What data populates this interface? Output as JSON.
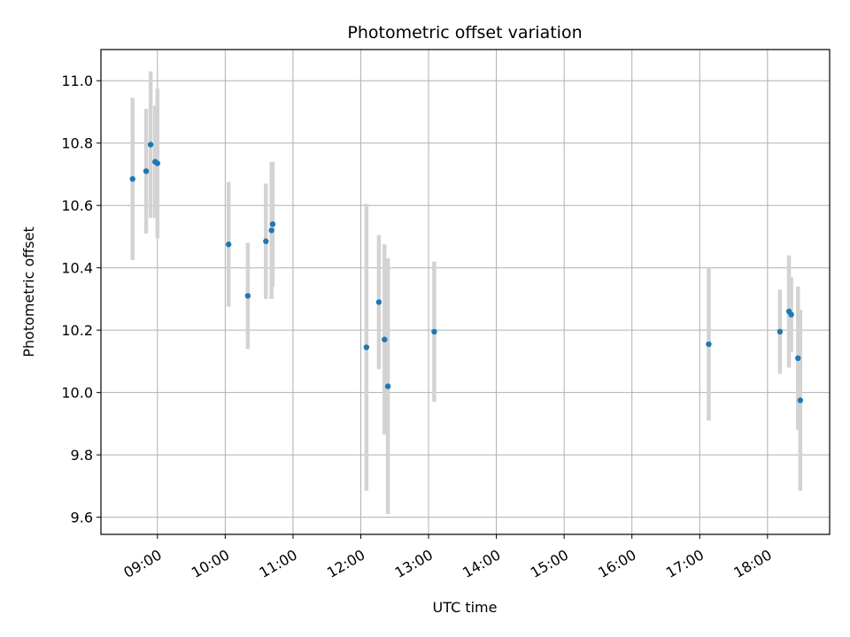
{
  "chart_data": {
    "type": "scatter",
    "title": "Photometric offset variation",
    "xlabel": "UTC time",
    "ylabel": "Photometric offset",
    "x_unit": "hours (UTC)",
    "xlim": [
      "08:10",
      "18:55"
    ],
    "ylim": [
      9.545,
      11.1
    ],
    "x_ticks": [
      "09:00",
      "10:00",
      "11:00",
      "12:00",
      "13:00",
      "14:00",
      "15:00",
      "16:00",
      "17:00",
      "18:00"
    ],
    "y_ticks": [
      "9.6",
      "9.8",
      "10.0",
      "10.2",
      "10.4",
      "10.6",
      "10.8",
      "11.0"
    ],
    "grid": true,
    "colors": {
      "points": "#1f77b4",
      "error_bars": "#d3d3d3",
      "grid": "#b0b0b0"
    },
    "series": [
      {
        "points": [
          {
            "x": "08:38",
            "y": 10.685,
            "err": 0.26
          },
          {
            "x": "08:50",
            "y": 10.71,
            "err": 0.2
          },
          {
            "x": "08:54",
            "y": 10.795,
            "err": 0.235
          },
          {
            "x": "08:58",
            "y": 10.74,
            "err": 0.18
          },
          {
            "x": "09:00",
            "y": 10.735,
            "err": 0.24
          },
          {
            "x": "10:03",
            "y": 10.475,
            "err": 0.2
          },
          {
            "x": "10:20",
            "y": 10.31,
            "err": 0.17
          },
          {
            "x": "10:36",
            "y": 10.485,
            "err": 0.185
          },
          {
            "x": "10:41",
            "y": 10.52,
            "err": 0.22
          },
          {
            "x": "10:42",
            "y": 10.54,
            "err": 0.2
          },
          {
            "x": "12:05",
            "y": 10.145,
            "err": 0.46
          },
          {
            "x": "12:16",
            "y": 10.29,
            "err": 0.215
          },
          {
            "x": "12:21",
            "y": 10.17,
            "err": 0.305
          },
          {
            "x": "12:24",
            "y": 10.02,
            "err": 0.41
          },
          {
            "x": "13:05",
            "y": 10.195,
            "err": 0.225
          },
          {
            "x": "17:08",
            "y": 10.155,
            "err": 0.245
          },
          {
            "x": "18:11",
            "y": 10.195,
            "err": 0.135
          },
          {
            "x": "18:19",
            "y": 10.26,
            "err": 0.18
          },
          {
            "x": "18:21",
            "y": 10.25,
            "err": 0.12
          },
          {
            "x": "18:27",
            "y": 10.11,
            "err": 0.23
          },
          {
            "x": "18:29",
            "y": 9.975,
            "err": 0.29
          }
        ]
      }
    ]
  }
}
